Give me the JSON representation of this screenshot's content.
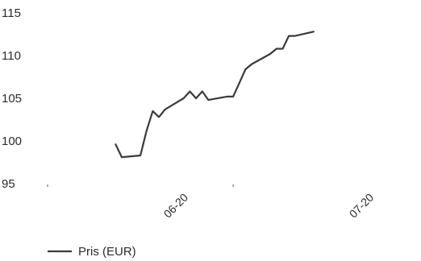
{
  "chart_data": {
    "type": "line",
    "title": "",
    "xlabel": "",
    "ylabel": "",
    "ylim": [
      95,
      115
    ],
    "yticks": [
      "95",
      "100",
      "105",
      "110",
      "115"
    ],
    "x_ticks": [
      "06-20",
      "07-20"
    ],
    "grid": false,
    "legend_position": "bottom-left",
    "series": [
      {
        "name": "Pris (EUR)",
        "color": "#3a3a3a",
        "points": [
          {
            "day": 11.0,
            "value": 99.6
          },
          {
            "day": 12.0,
            "value": 98.1
          },
          {
            "day": 15.0,
            "value": 98.3
          },
          {
            "day": 16.0,
            "value": 101.2
          },
          {
            "day": 17.0,
            "value": 103.5
          },
          {
            "day": 18.0,
            "value": 102.8
          },
          {
            "day": 19.0,
            "value": 103.7
          },
          {
            "day": 22.0,
            "value": 105.0
          },
          {
            "day": 23.0,
            "value": 105.8
          },
          {
            "day": 24.0,
            "value": 105.0
          },
          {
            "day": 25.0,
            "value": 105.8
          },
          {
            "day": 26.0,
            "value": 104.8
          },
          {
            "day": 29.0,
            "value": 105.2
          },
          {
            "day": 30.0,
            "value": 105.2
          },
          {
            "day": 31.0,
            "value": 106.8
          },
          {
            "day": 32.0,
            "value": 108.4
          },
          {
            "day": 33.0,
            "value": 109.0
          },
          {
            "day": 36.0,
            "value": 110.2
          },
          {
            "day": 37.0,
            "value": 110.8
          },
          {
            "day": 38.0,
            "value": 110.8
          },
          {
            "day": 39.0,
            "value": 112.3
          },
          {
            "day": 40.0,
            "value": 112.3
          },
          {
            "day": 43.0,
            "value": 112.8
          }
        ]
      }
    ]
  }
}
